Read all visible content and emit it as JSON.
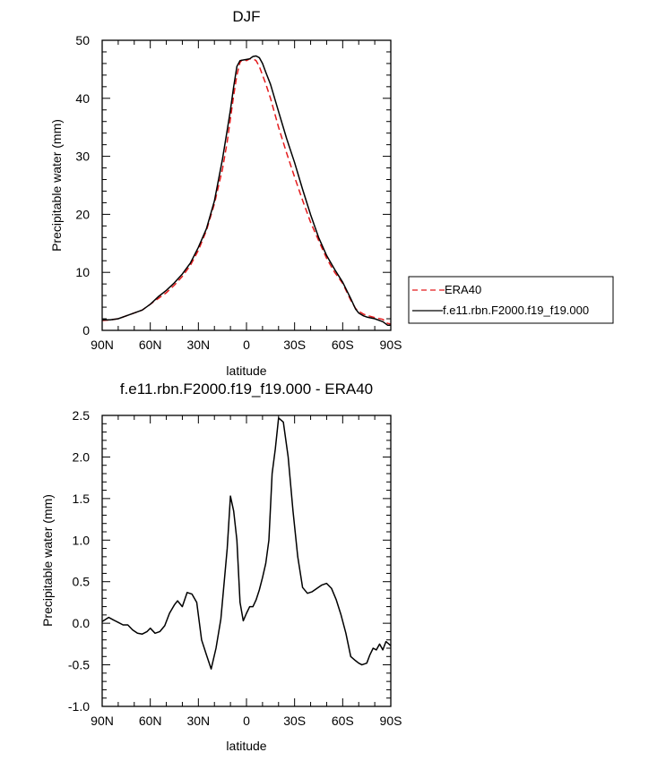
{
  "chart_data": [
    {
      "type": "line",
      "title": "DJF",
      "xlabel": "latitude",
      "ylabel": "Precipitable water (mm)",
      "x_range": [
        90,
        -90
      ],
      "x_ticks": [
        90,
        60,
        30,
        0,
        -30,
        -60,
        -90
      ],
      "x_tick_labels": [
        "90N",
        "60N",
        "30N",
        "0",
        "30S",
        "60S",
        "90S"
      ],
      "ylim": [
        0,
        50
      ],
      "y_ticks": [
        0,
        10,
        20,
        30,
        40,
        50
      ],
      "y_tick_labels": [
        "0",
        "10",
        "20",
        "30",
        "40",
        "50"
      ],
      "legend_position": "right",
      "series": [
        {
          "name": "ERA40",
          "color": "#e41a1c",
          "dash": "dashed",
          "x": [
            90,
            85,
            80,
            75,
            70,
            65,
            60,
            55,
            50,
            45,
            40,
            35,
            30,
            25,
            20,
            15,
            12,
            10,
            8,
            6,
            4,
            2,
            0,
            -2,
            -4,
            -6,
            -8,
            -10,
            -12,
            -15,
            -20,
            -25,
            -30,
            -35,
            -40,
            -45,
            -50,
            -55,
            -60,
            -65,
            -68,
            -70,
            -73,
            -75,
            -80,
            -85,
            -88,
            -90
          ],
          "y": [
            1.7,
            1.8,
            2.0,
            2.5,
            3.0,
            3.5,
            4.5,
            5.5,
            6.5,
            7.8,
            9.3,
            11.2,
            13.8,
            17.2,
            21.8,
            27.8,
            32.5,
            36.5,
            40.5,
            44.0,
            46.2,
            46.8,
            46.5,
            46.8,
            46.8,
            46.5,
            45.5,
            44.0,
            42.5,
            40.0,
            35.0,
            30.6,
            26.4,
            22.4,
            18.6,
            15.5,
            12.4,
            10.0,
            8.1,
            5.2,
            3.8,
            3.3,
            2.8,
            2.6,
            2.2,
            1.9,
            1.2,
            1.1
          ]
        },
        {
          "name": "f.e11.rbn.F2000.f19_f19.000",
          "color": "#000000",
          "dash": "solid",
          "x": [
            90,
            85,
            80,
            75,
            70,
            65,
            60,
            55,
            50,
            45,
            40,
            35,
            30,
            25,
            20,
            15,
            12,
            10,
            8,
            6,
            4,
            2,
            0,
            -2,
            -4,
            -6,
            -8,
            -10,
            -12,
            -15,
            -20,
            -25,
            -30,
            -35,
            -40,
            -45,
            -50,
            -55,
            -60,
            -65,
            -68,
            -70,
            -73,
            -75,
            -80,
            -85,
            -88,
            -90
          ],
          "y": [
            1.8,
            1.8,
            2.0,
            2.5,
            3.0,
            3.5,
            4.5,
            5.8,
            6.9,
            8.2,
            9.7,
            11.6,
            14.3,
            17.5,
            22.3,
            29.5,
            34.5,
            38.0,
            42.0,
            45.5,
            46.5,
            46.6,
            46.7,
            46.8,
            47.2,
            47.3,
            47.0,
            46.0,
            44.5,
            42.4,
            37.7,
            33.1,
            28.9,
            24.3,
            19.9,
            16.0,
            12.9,
            10.5,
            8.3,
            5.5,
            3.7,
            3.0,
            2.5,
            2.3,
            2.0,
            1.5,
            0.9,
            0.9
          ]
        }
      ]
    },
    {
      "type": "line",
      "title": "f.e11.rbn.F2000.f19_f19.000 - ERA40",
      "xlabel": "latitude",
      "ylabel": "Precipitable water (mm)",
      "x_range": [
        90,
        -90
      ],
      "x_ticks": [
        90,
        60,
        30,
        0,
        -30,
        -60,
        -90
      ],
      "x_tick_labels": [
        "90N",
        "60N",
        "30N",
        "0",
        "30S",
        "60S",
        "90S"
      ],
      "ylim": [
        -1.0,
        2.5
      ],
      "y_ticks": [
        -1.0,
        -0.5,
        0.0,
        0.5,
        1.0,
        1.5,
        2.0,
        2.5
      ],
      "y_tick_labels": [
        "-1.0",
        "-0.5",
        "0.0",
        "0.5",
        "1.0",
        "1.5",
        "2.0",
        "2.5"
      ],
      "series": [
        {
          "color": "#000000",
          "dash": "solid",
          "x": [
            90,
            86,
            83,
            80,
            77,
            74,
            71,
            68,
            65,
            62,
            60,
            57,
            54,
            51,
            48,
            45,
            43,
            40,
            37,
            34,
            31,
            28,
            25,
            22,
            19,
            16,
            14,
            12,
            10,
            8,
            6,
            4,
            2,
            0,
            -2,
            -4,
            -6,
            -8,
            -10,
            -12,
            -14,
            -16,
            -18,
            -20,
            -23,
            -26,
            -29,
            -32,
            -35,
            -38,
            -41,
            -44,
            -47,
            -50,
            -53,
            -56,
            -59,
            -62,
            -65,
            -68,
            -70,
            -72,
            -75,
            -77,
            -79,
            -81,
            -83,
            -85,
            -87,
            -90
          ],
          "y": [
            0.02,
            0.07,
            0.04,
            0.01,
            -0.02,
            -0.02,
            -0.08,
            -0.12,
            -0.13,
            -0.1,
            -0.06,
            -0.12,
            -0.1,
            -0.03,
            0.12,
            0.22,
            0.27,
            0.2,
            0.37,
            0.35,
            0.25,
            -0.2,
            -0.38,
            -0.55,
            -0.3,
            0.05,
            0.48,
            0.9,
            1.53,
            1.35,
            1.0,
            0.25,
            0.03,
            0.12,
            0.2,
            0.2,
            0.28,
            0.4,
            0.55,
            0.72,
            1.0,
            1.8,
            2.1,
            2.47,
            2.42,
            2.0,
            1.35,
            0.8,
            0.43,
            0.36,
            0.38,
            0.42,
            0.46,
            0.48,
            0.42,
            0.28,
            0.1,
            -0.12,
            -0.4,
            -0.45,
            -0.48,
            -0.5,
            -0.48,
            -0.38,
            -0.3,
            -0.32,
            -0.25,
            -0.32,
            -0.22,
            -0.27
          ]
        }
      ]
    }
  ]
}
